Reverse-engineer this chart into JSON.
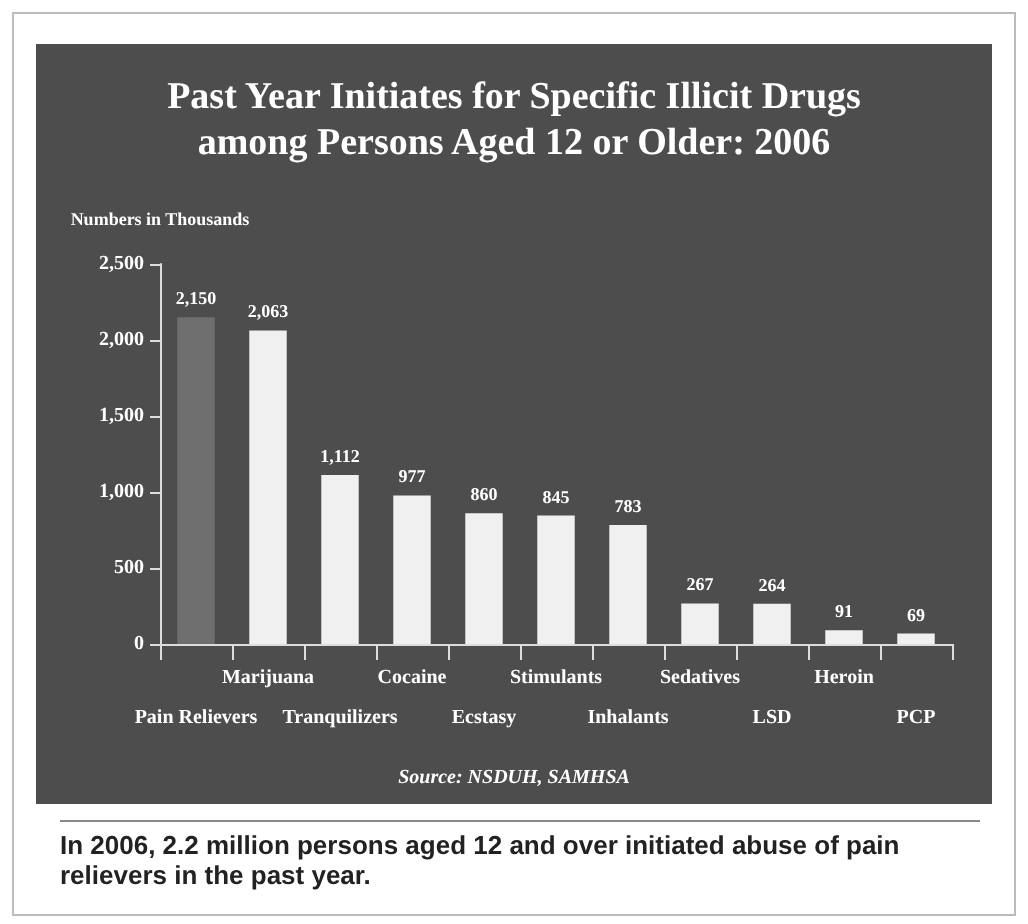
{
  "chart_data": {
    "type": "bar",
    "title": "Past Year Initiates for Specific Illicit Drugs\namong Persons Aged 12 or Older: 2006",
    "ylabel": "Numbers in Thousands",
    "categories": [
      "Pain Relievers",
      "Marijuana",
      "Tranquilizers",
      "Cocaine",
      "Ecstasy",
      "Stimulants",
      "Inhalants",
      "Sedatives",
      "LSD",
      "Heroin",
      "PCP"
    ],
    "values": [
      2150,
      2063,
      1112,
      977,
      860,
      845,
      783,
      267,
      264,
      91,
      69
    ],
    "value_labels": [
      "2,150",
      "2,063",
      "1,112",
      "977",
      "860",
      "845",
      "783",
      "267",
      "264",
      "91",
      "69"
    ],
    "colors": [
      "#6f6f6f",
      "#f0f0f0",
      "#f0f0f0",
      "#f0f0f0",
      "#f0f0f0",
      "#f0f0f0",
      "#f0f0f0",
      "#f0f0f0",
      "#f0f0f0",
      "#f0f0f0",
      "#f0f0f0"
    ],
    "ylim": [
      0,
      2500
    ],
    "yticks": [
      {
        "value": 0,
        "label": "0"
      },
      {
        "value": 500,
        "label": "500"
      },
      {
        "value": 1000,
        "label": "1,000"
      },
      {
        "value": 1500,
        "label": "1,500"
      },
      {
        "value": 2000,
        "label": "2,000"
      },
      {
        "value": 2500,
        "label": "2,500"
      }
    ],
    "grid": false,
    "annotations": [
      "Source: NSDUH, SAMHSA",
      "In 2006, 2.2 million persons aged 12 and over initiated abuse of pain relievers in the past year."
    ]
  }
}
